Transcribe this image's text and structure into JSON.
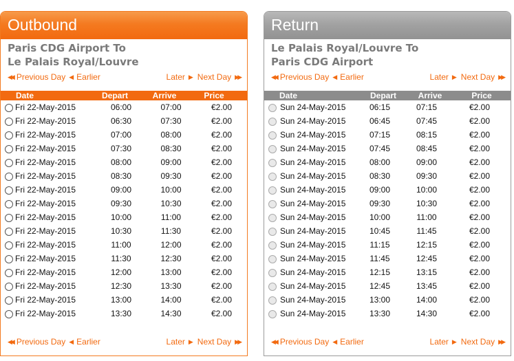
{
  "outbound": {
    "title": "Outbound",
    "route_line1": "Paris CDG Airport To",
    "route_line2": "Le Palais Royal/Louvre",
    "nav": {
      "previous_day": "Previous Day",
      "earlier": "Earlier",
      "later": "Later",
      "next_day": "Next Day"
    },
    "columns": {
      "date": "Date",
      "depart": "Depart",
      "arrive": "Arrive",
      "price": "Price"
    },
    "rows": [
      {
        "date": "Fri 22-May-2015",
        "depart": "06:00",
        "arrive": "07:00",
        "price": "€2.00"
      },
      {
        "date": "Fri 22-May-2015",
        "depart": "06:30",
        "arrive": "07:30",
        "price": "€2.00"
      },
      {
        "date": "Fri 22-May-2015",
        "depart": "07:00",
        "arrive": "08:00",
        "price": "€2.00"
      },
      {
        "date": "Fri 22-May-2015",
        "depart": "07:30",
        "arrive": "08:30",
        "price": "€2.00"
      },
      {
        "date": "Fri 22-May-2015",
        "depart": "08:00",
        "arrive": "09:00",
        "price": "€2.00"
      },
      {
        "date": "Fri 22-May-2015",
        "depart": "08:30",
        "arrive": "09:30",
        "price": "€2.00"
      },
      {
        "date": "Fri 22-May-2015",
        "depart": "09:00",
        "arrive": "10:00",
        "price": "€2.00"
      },
      {
        "date": "Fri 22-May-2015",
        "depart": "09:30",
        "arrive": "10:30",
        "price": "€2.00"
      },
      {
        "date": "Fri 22-May-2015",
        "depart": "10:00",
        "arrive": "11:00",
        "price": "€2.00"
      },
      {
        "date": "Fri 22-May-2015",
        "depart": "10:30",
        "arrive": "11:30",
        "price": "€2.00"
      },
      {
        "date": "Fri 22-May-2015",
        "depart": "11:00",
        "arrive": "12:00",
        "price": "€2.00"
      },
      {
        "date": "Fri 22-May-2015",
        "depart": "11:30",
        "arrive": "12:30",
        "price": "€2.00"
      },
      {
        "date": "Fri 22-May-2015",
        "depart": "12:00",
        "arrive": "13:00",
        "price": "€2.00"
      },
      {
        "date": "Fri 22-May-2015",
        "depart": "12:30",
        "arrive": "13:30",
        "price": "€2.00"
      },
      {
        "date": "Fri 22-May-2015",
        "depart": "13:00",
        "arrive": "14:00",
        "price": "€2.00"
      },
      {
        "date": "Fri 22-May-2015",
        "depart": "13:30",
        "arrive": "14:30",
        "price": "€2.00"
      }
    ]
  },
  "return": {
    "title": "Return",
    "route_line1": "Le Palais Royal/Louvre To",
    "route_line2": "Paris CDG Airport",
    "nav": {
      "previous_day": "Previous Day",
      "earlier": "Earlier",
      "later": "Later",
      "next_day": "Next Day"
    },
    "columns": {
      "date": "Date",
      "depart": "Depart",
      "arrive": "Arrive",
      "price": "Price"
    },
    "rows": [
      {
        "date": "Sun 24-May-2015",
        "depart": "06:15",
        "arrive": "07:15",
        "price": "€2.00"
      },
      {
        "date": "Sun 24-May-2015",
        "depart": "06:45",
        "arrive": "07:45",
        "price": "€2.00"
      },
      {
        "date": "Sun 24-May-2015",
        "depart": "07:15",
        "arrive": "08:15",
        "price": "€2.00"
      },
      {
        "date": "Sun 24-May-2015",
        "depart": "07:45",
        "arrive": "08:45",
        "price": "€2.00"
      },
      {
        "date": "Sun 24-May-2015",
        "depart": "08:00",
        "arrive": "09:00",
        "price": "€2.00"
      },
      {
        "date": "Sun 24-May-2015",
        "depart": "08:30",
        "arrive": "09:30",
        "price": "€2.00"
      },
      {
        "date": "Sun 24-May-2015",
        "depart": "09:00",
        "arrive": "10:00",
        "price": "€2.00"
      },
      {
        "date": "Sun 24-May-2015",
        "depart": "09:30",
        "arrive": "10:30",
        "price": "€2.00"
      },
      {
        "date": "Sun 24-May-2015",
        "depart": "10:00",
        "arrive": "11:00",
        "price": "€2.00"
      },
      {
        "date": "Sun 24-May-2015",
        "depart": "10:45",
        "arrive": "11:45",
        "price": "€2.00"
      },
      {
        "date": "Sun 24-May-2015",
        "depart": "11:15",
        "arrive": "12:15",
        "price": "€2.00"
      },
      {
        "date": "Sun 24-May-2015",
        "depart": "11:45",
        "arrive": "12:45",
        "price": "€2.00"
      },
      {
        "date": "Sun 24-May-2015",
        "depart": "12:15",
        "arrive": "13:15",
        "price": "€2.00"
      },
      {
        "date": "Sun 24-May-2015",
        "depart": "12:45",
        "arrive": "13:45",
        "price": "€2.00"
      },
      {
        "date": "Sun 24-May-2015",
        "depart": "13:00",
        "arrive": "14:00",
        "price": "€2.00"
      },
      {
        "date": "Sun 24-May-2015",
        "depart": "13:30",
        "arrive": "14:30",
        "price": "€2.00"
      }
    ]
  },
  "icons": {
    "double_left": "double-left-arrow-icon",
    "single_left": "left-arrow-icon",
    "single_right": "right-arrow-icon",
    "double_right": "double-right-arrow-icon"
  },
  "colors": {
    "outbound_accent": "#f26a10",
    "return_accent": "#8c8c8c"
  }
}
